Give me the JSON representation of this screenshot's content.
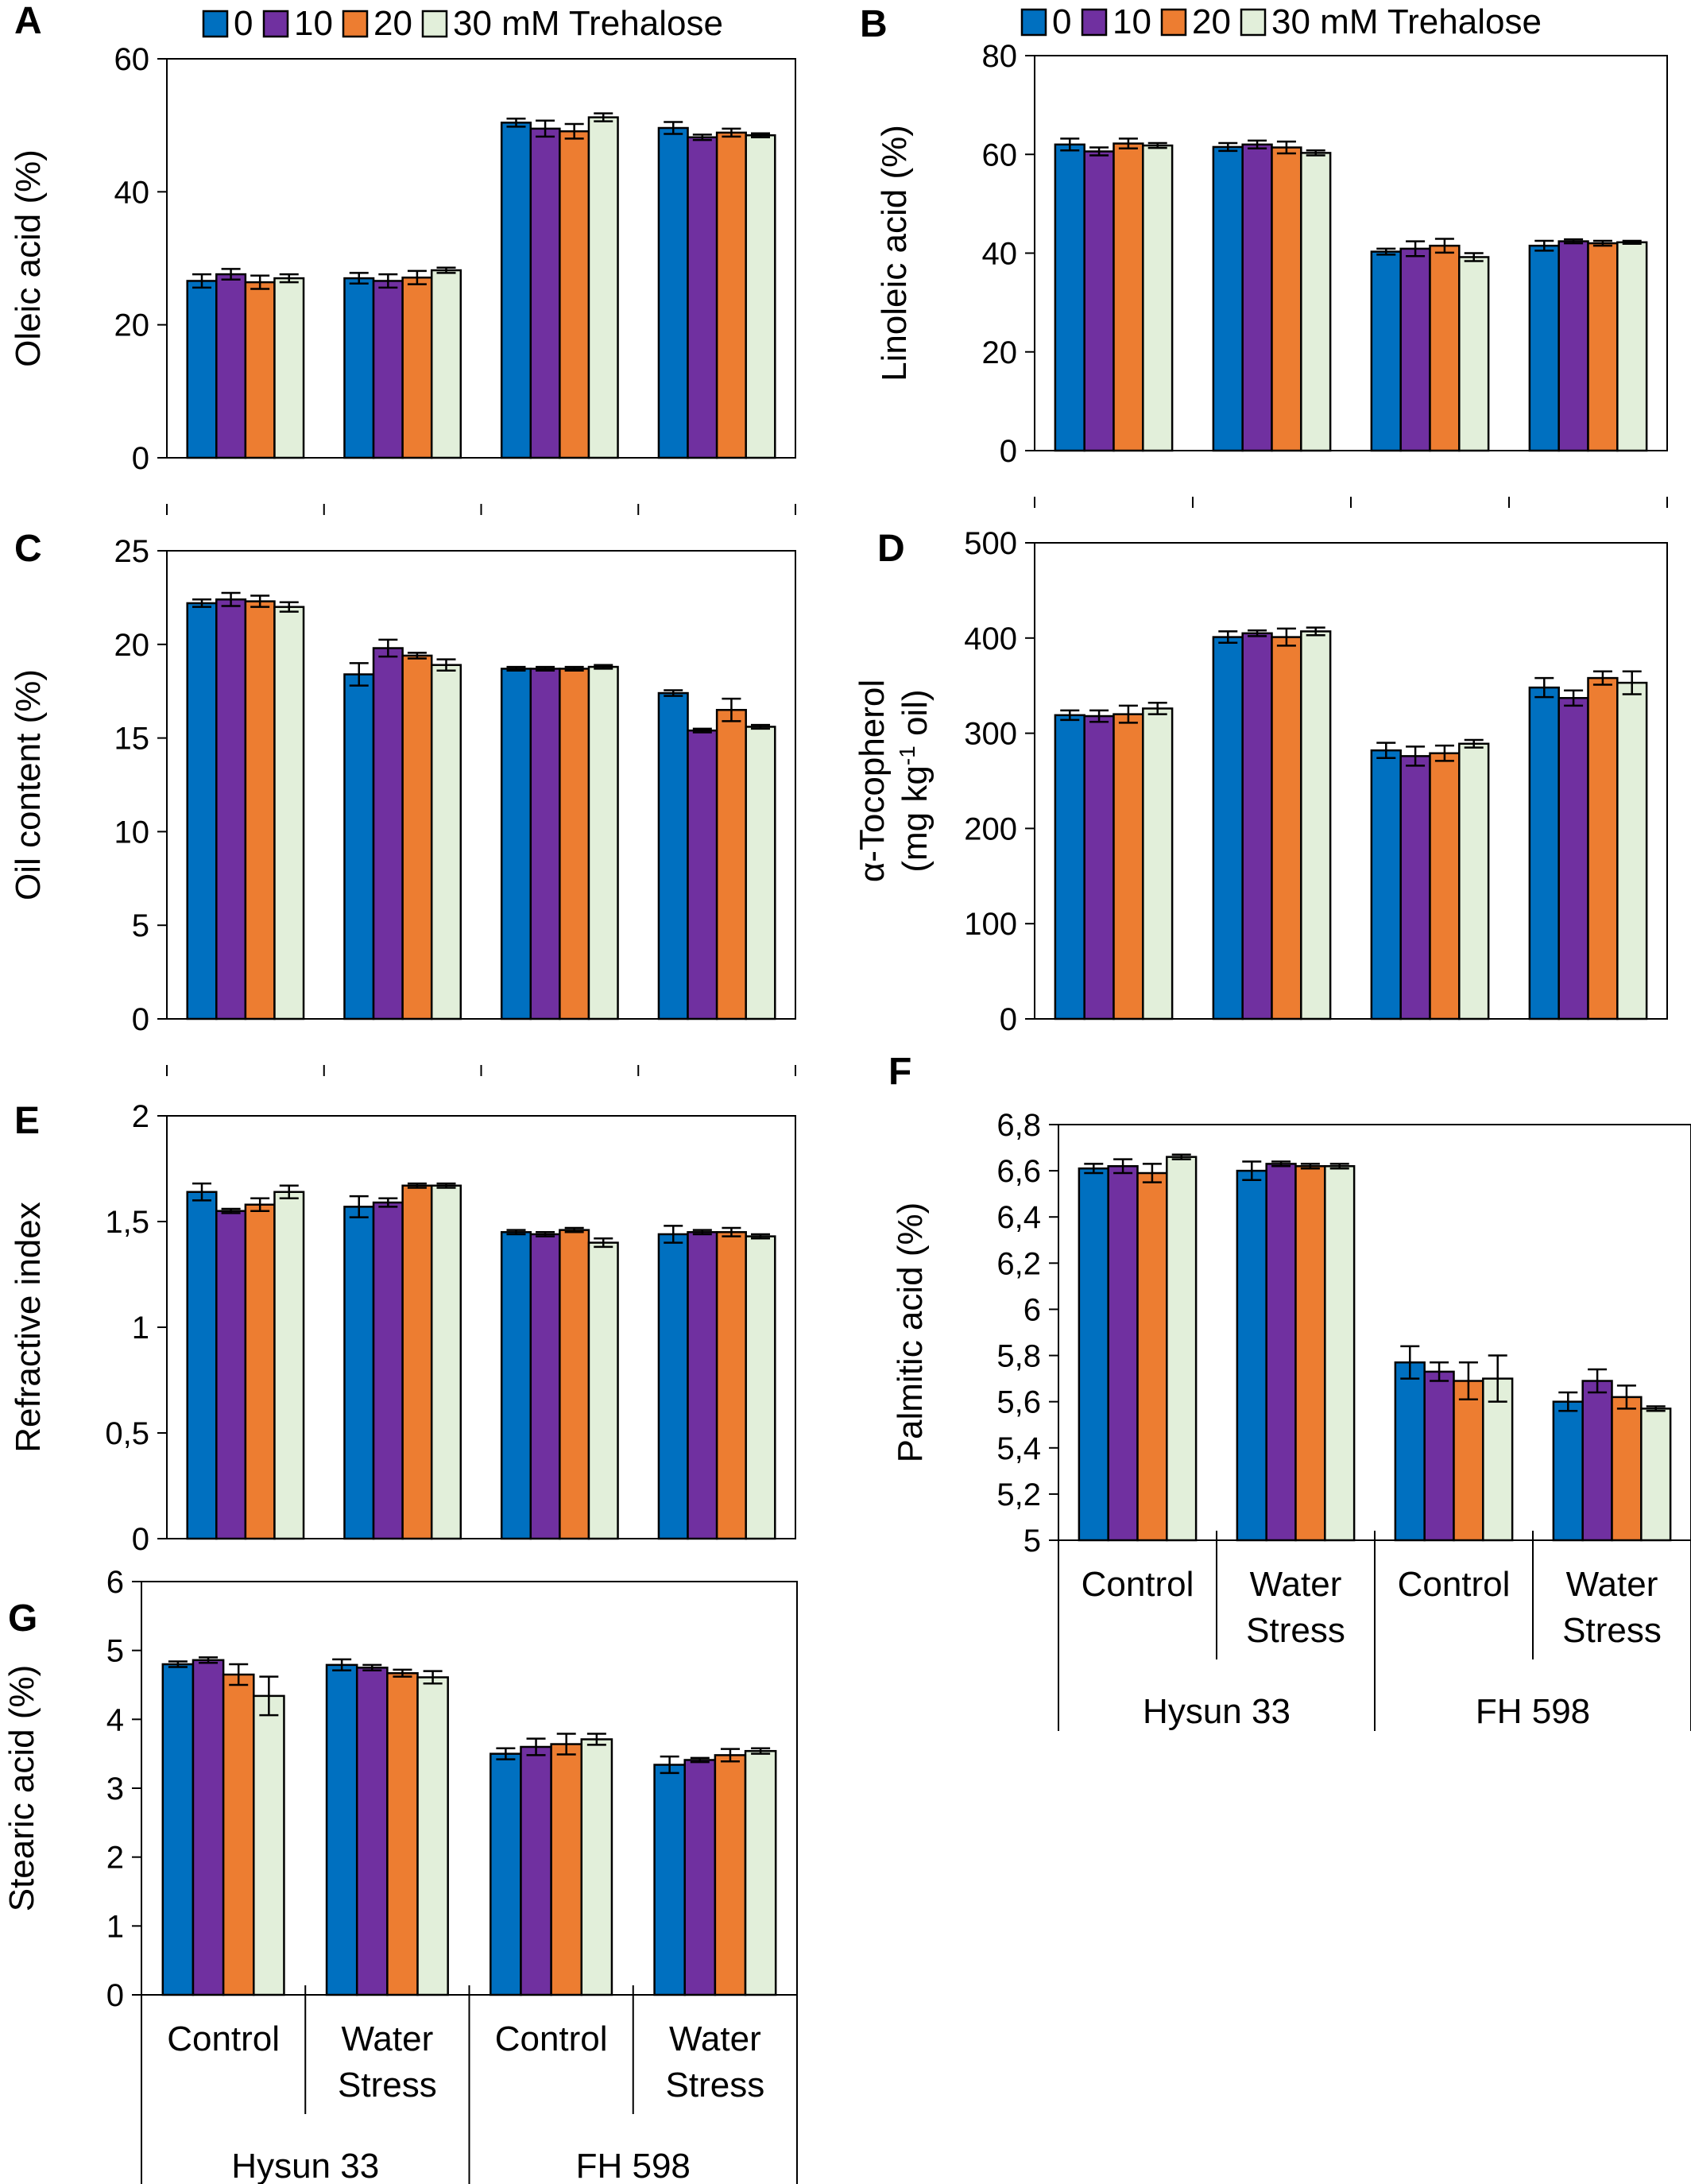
{
  "legend": {
    "items": [
      "0",
      "10",
      "20",
      "30 mM Trehalose"
    ],
    "colors": [
      "#0070c0",
      "#7030a0",
      "#ed7d31",
      "#e2efda"
    ]
  },
  "categories": {
    "treatments": [
      "Control",
      "Water Stress",
      "Control",
      "Water Stress"
    ],
    "treatment_lines": [
      [
        "Control"
      ],
      [
        "Water",
        "Stress"
      ],
      [
        "Control"
      ],
      [
        "Water",
        "Stress"
      ]
    ],
    "cultivars": [
      "Hysun 33",
      "FH 598"
    ]
  },
  "chart_data": [
    {
      "panel": "A",
      "type": "bar",
      "ylabel": "Oleic acid (%)",
      "ylim": [
        0,
        60
      ],
      "yticks": [
        0,
        20,
        40,
        60
      ],
      "tick_labels": [
        "0",
        "20",
        "40",
        "60"
      ],
      "categories": [
        "Hysun 33 Control",
        "Hysun 33 Water Stress",
        "FH 598 Control",
        "FH 598 Water Stress"
      ],
      "series": [
        {
          "name": "0",
          "values": [
            26.6,
            27.0,
            50.4,
            49.6
          ],
          "errors": [
            1.0,
            0.8,
            0.6,
            0.9
          ]
        },
        {
          "name": "10",
          "values": [
            27.6,
            26.6,
            49.5,
            48.2
          ],
          "errors": [
            0.8,
            1.0,
            1.2,
            0.4
          ]
        },
        {
          "name": "20",
          "values": [
            26.4,
            27.1,
            49.1,
            48.9
          ],
          "errors": [
            1.0,
            1.0,
            1.1,
            0.6
          ]
        },
        {
          "name": "30 mM Trehalose",
          "values": [
            27.0,
            28.2,
            51.2,
            48.5
          ],
          "errors": [
            0.6,
            0.4,
            0.6,
            0.3
          ]
        }
      ]
    },
    {
      "panel": "B",
      "type": "bar",
      "ylabel": "Linoleic acid (%)",
      "ylim": [
        0,
        80
      ],
      "yticks": [
        0,
        20,
        40,
        60,
        80
      ],
      "tick_labels": [
        "0",
        "20",
        "40",
        "60",
        "80"
      ],
      "categories": [
        "Hysun 33 Control",
        "Hysun 33 Water Stress",
        "FH 598 Control",
        "FH 598 Water Stress"
      ],
      "series": [
        {
          "name": "0",
          "values": [
            62.0,
            61.5,
            40.3,
            41.5
          ],
          "errors": [
            1.2,
            0.8,
            0.6,
            1.0
          ]
        },
        {
          "name": "10",
          "values": [
            60.6,
            62.0,
            40.9,
            42.4
          ],
          "errors": [
            0.8,
            0.8,
            1.5,
            0.4
          ]
        },
        {
          "name": "20",
          "values": [
            62.2,
            61.4,
            41.5,
            42.0
          ],
          "errors": [
            1.0,
            1.2,
            1.4,
            0.5
          ]
        },
        {
          "name": "30 mM Trehalose",
          "values": [
            61.8,
            60.3,
            39.2,
            42.2
          ],
          "errors": [
            0.5,
            0.5,
            0.8,
            0.3
          ]
        }
      ]
    },
    {
      "panel": "C",
      "type": "bar",
      "ylabel": "Oil content (%)",
      "ylim": [
        0,
        25
      ],
      "yticks": [
        0,
        5,
        10,
        15,
        20,
        25
      ],
      "tick_labels": [
        "0",
        "5",
        "10",
        "15",
        "20",
        "25"
      ],
      "categories": [
        "Hysun 33 Control",
        "Hysun 33 Water Stress",
        "FH 598 Control",
        "FH 598 Water Stress"
      ],
      "series": [
        {
          "name": "0",
          "values": [
            22.2,
            18.4,
            18.7,
            17.4
          ],
          "errors": [
            0.2,
            0.6,
            0.1,
            0.15
          ]
        },
        {
          "name": "10",
          "values": [
            22.4,
            19.8,
            18.7,
            15.4
          ],
          "errors": [
            0.35,
            0.45,
            0.1,
            0.1
          ]
        },
        {
          "name": "20",
          "values": [
            22.3,
            19.4,
            18.7,
            16.5
          ],
          "errors": [
            0.3,
            0.15,
            0.1,
            0.6
          ]
        },
        {
          "name": "30 mM Trehalose",
          "values": [
            22.0,
            18.9,
            18.8,
            15.6
          ],
          "errors": [
            0.25,
            0.3,
            0.1,
            0.1
          ]
        }
      ]
    },
    {
      "panel": "D",
      "type": "bar",
      "ylabel_lines": [
        "α-Tocopherol",
        "(mg kg",
        "-1",
        " oil)"
      ],
      "ylim": [
        0,
        500
      ],
      "yticks": [
        0,
        100,
        200,
        300,
        400,
        500
      ],
      "tick_labels": [
        "0",
        "100",
        "200",
        "300",
        "400",
        "500"
      ],
      "categories": [
        "Hysun 33 Control",
        "Hysun 33 Water Stress",
        "FH 598 Control",
        "FH 598 Water Stress"
      ],
      "series": [
        {
          "name": "0",
          "values": [
            319,
            401,
            282,
            348
          ],
          "errors": [
            5,
            6,
            8,
            10
          ]
        },
        {
          "name": "10",
          "values": [
            318,
            405,
            276,
            337
          ],
          "errors": [
            6,
            3,
            10,
            8
          ]
        },
        {
          "name": "20",
          "values": [
            320,
            401,
            279,
            358
          ],
          "errors": [
            9,
            9,
            8,
            7
          ]
        },
        {
          "name": "30 mM Trehalose",
          "values": [
            326,
            407,
            289,
            353
          ],
          "errors": [
            6,
            4,
            4,
            12
          ]
        }
      ]
    },
    {
      "panel": "E",
      "type": "bar",
      "ylabel": "Refractive index",
      "ylim": [
        0,
        2
      ],
      "yticks": [
        0,
        0.5,
        1,
        1.5,
        2
      ],
      "tick_labels": [
        "0",
        "0,5",
        "1",
        "1,5",
        "2"
      ],
      "categories": [
        "Hysun 33 Control",
        "Hysun 33 Water Stress",
        "FH 598 Control",
        "FH 598 Water Stress"
      ],
      "series": [
        {
          "name": "0",
          "values": [
            1.64,
            1.57,
            1.45,
            1.44
          ],
          "errors": [
            0.04,
            0.05,
            0.01,
            0.04
          ]
        },
        {
          "name": "10",
          "values": [
            1.55,
            1.59,
            1.44,
            1.45
          ],
          "errors": [
            0.01,
            0.02,
            0.01,
            0.01
          ]
        },
        {
          "name": "20",
          "values": [
            1.58,
            1.67,
            1.46,
            1.45
          ],
          "errors": [
            0.03,
            0.01,
            0.01,
            0.02
          ]
        },
        {
          "name": "30 mM Trehalose",
          "values": [
            1.64,
            1.67,
            1.4,
            1.43
          ],
          "errors": [
            0.03,
            0.01,
            0.02,
            0.01
          ]
        }
      ]
    },
    {
      "panel": "F",
      "type": "bar",
      "ylabel": "Palmitic acid (%)",
      "ylim": [
        5,
        6.8
      ],
      "yticks": [
        5,
        5.2,
        5.4,
        5.6,
        5.8,
        6,
        6.2,
        6.4,
        6.6,
        6.8
      ],
      "tick_labels": [
        "5",
        "5,2",
        "5,4",
        "5,6",
        "5,8",
        "6",
        "6,2",
        "6,4",
        "6,6",
        "6,8"
      ],
      "categories": [
        "Hysun 33 Control",
        "Hysun 33 Water Stress",
        "FH 598 Control",
        "FH 598 Water Stress"
      ],
      "series": [
        {
          "name": "0",
          "values": [
            6.61,
            6.6,
            5.77,
            5.6
          ],
          "errors": [
            0.02,
            0.04,
            0.07,
            0.04
          ]
        },
        {
          "name": "10",
          "values": [
            6.62,
            6.63,
            5.73,
            5.69
          ],
          "errors": [
            0.03,
            0.01,
            0.04,
            0.05
          ]
        },
        {
          "name": "20",
          "values": [
            6.59,
            6.62,
            5.69,
            5.62
          ],
          "errors": [
            0.04,
            0.01,
            0.08,
            0.05
          ]
        },
        {
          "name": "30 mM Trehalose",
          "values": [
            6.66,
            6.62,
            5.7,
            5.57
          ],
          "errors": [
            0.01,
            0.01,
            0.1,
            0.01
          ]
        }
      ]
    },
    {
      "panel": "G",
      "type": "bar",
      "ylabel": "Stearic acid (%)",
      "ylim": [
        0,
        6
      ],
      "yticks": [
        0,
        1,
        2,
        3,
        4,
        5,
        6
      ],
      "tick_labels": [
        "0",
        "1",
        "2",
        "3",
        "4",
        "5",
        "6"
      ],
      "categories": [
        "Hysun 33 Control",
        "Hysun 33 Water Stress",
        "FH 598 Control",
        "FH 598 Water Stress"
      ],
      "series": [
        {
          "name": "0",
          "values": [
            4.8,
            4.79,
            3.5,
            3.34
          ],
          "errors": [
            0.04,
            0.08,
            0.08,
            0.12
          ]
        },
        {
          "name": "10",
          "values": [
            4.86,
            4.75,
            3.6,
            3.41
          ],
          "errors": [
            0.04,
            0.04,
            0.12,
            0.03
          ]
        },
        {
          "name": "20",
          "values": [
            4.65,
            4.67,
            3.64,
            3.48
          ],
          "errors": [
            0.15,
            0.05,
            0.15,
            0.09
          ]
        },
        {
          "name": "30 mM Trehalose",
          "values": [
            4.34,
            4.61,
            3.71,
            3.54
          ],
          "errors": [
            0.28,
            0.09,
            0.08,
            0.04
          ]
        }
      ]
    }
  ]
}
